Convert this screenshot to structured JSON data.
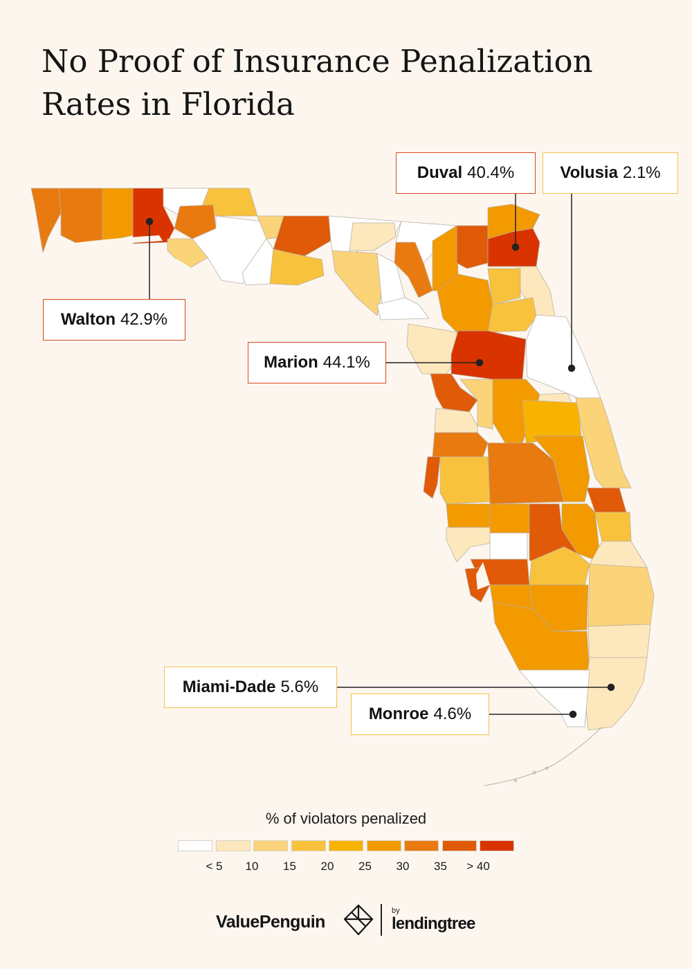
{
  "title": {
    "line1": "No Proof of Insurance Penalization",
    "line2": "Rates in Florida"
  },
  "scale_colors": [
    "#ffffff",
    "#fde8bd",
    "#fbd378",
    "#f9c23c",
    "#f8b200",
    "#f29a00",
    "#e97a0f",
    "#e05a08",
    "#d93400"
  ],
  "callouts": [
    {
      "name": "Walton",
      "value": "42.9%",
      "level": "dark"
    },
    {
      "name": "Duval",
      "value": "40.4%",
      "level": "dark"
    },
    {
      "name": "Volusia",
      "value": "2.1%",
      "level": "light"
    },
    {
      "name": "Marion",
      "value": "44.1%",
      "level": "dark"
    },
    {
      "name": "Miami-Dade",
      "value": "5.6%",
      "level": "light"
    },
    {
      "name": "Monroe",
      "value": "4.6%",
      "level": "light"
    }
  ],
  "legend": {
    "title": "% of violators penalized",
    "ticks": [
      "< 5",
      "10",
      "15",
      "20",
      "25",
      "30",
      "35",
      "> 40"
    ]
  },
  "footer": {
    "valuepenguin": "ValuePenguin",
    "by": "by",
    "lendingtree": "lendingtree"
  },
  "icons": {
    "logo": "valuepenguin-diamond-icon"
  }
}
